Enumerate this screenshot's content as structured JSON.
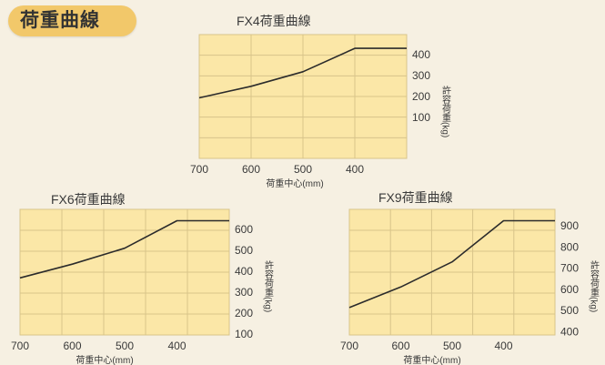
{
  "header": {
    "title": "荷重曲線"
  },
  "colors": {
    "plot_bg": "#fbe7a7",
    "grid": "#d8c48a",
    "curve": "#2b2b2b",
    "text": "#3a3a3a",
    "badge": "#f2c86a"
  },
  "chart_data": [
    {
      "type": "line",
      "title": "FX4荷重曲線",
      "xlabel": "荷重中心(mm)",
      "ylabel": "許容荷重(kg)",
      "x_ticks": [
        "700",
        "600",
        "500",
        "400"
      ],
      "y_ticks": [
        "400",
        "300",
        "200",
        "100"
      ],
      "xlim": [
        700,
        300
      ],
      "ylim": [
        0,
        450
      ],
      "series": [
        {
          "x": [
            700,
            600,
            500,
            400,
            300
          ],
          "y": [
            220,
            262,
            315,
            400,
            400
          ]
        }
      ]
    },
    {
      "type": "line",
      "title": "FX6荷重曲線",
      "xlabel": "荷重中心(mm)",
      "ylabel": "許容荷重(kg)",
      "x_ticks": [
        "700",
        "600",
        "500",
        "400"
      ],
      "y_ticks": [
        "600",
        "500",
        "400",
        "300",
        "200",
        "100"
      ],
      "xlim": [
        700,
        300
      ],
      "ylim": [
        100,
        650
      ],
      "series": [
        {
          "x": [
            700,
            600,
            500,
            400,
            300
          ],
          "y": [
            350,
            410,
            480,
            600,
            600
          ]
        }
      ]
    },
    {
      "type": "line",
      "title": "FX9荷重曲線",
      "xlabel": "荷重中心(mm)",
      "ylabel": "許容荷重(kg)",
      "x_ticks": [
        "700",
        "600",
        "500",
        "400"
      ],
      "y_ticks": [
        "900",
        "800",
        "700",
        "600",
        "500",
        "400"
      ],
      "xlim": [
        700,
        300
      ],
      "ylim": [
        400,
        950
      ],
      "series": [
        {
          "x": [
            700,
            600,
            500,
            400,
            300
          ],
          "y": [
            520,
            610,
            720,
            900,
            900
          ]
        }
      ]
    }
  ]
}
